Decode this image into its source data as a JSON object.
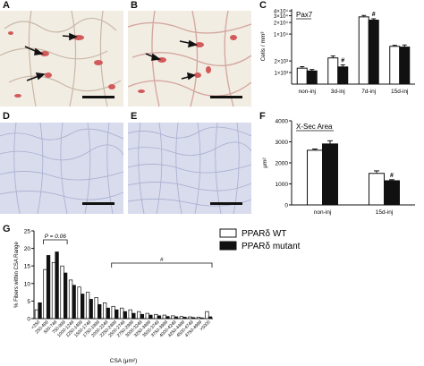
{
  "panels": {
    "A": {
      "label": "A"
    },
    "B": {
      "label": "B"
    },
    "C": {
      "label": "C"
    },
    "D": {
      "label": "D"
    },
    "E": {
      "label": "E"
    },
    "F": {
      "label": "F"
    },
    "G": {
      "label": "G"
    }
  },
  "colors": {
    "wt": "#ffffff",
    "mutant": "#111111",
    "he_background": "#f2ede3",
    "nuclei": "#d25a5a",
    "ihc_background": "#d9dced"
  },
  "chart_data": [
    {
      "panel": "C",
      "type": "bar",
      "title": "Pax7",
      "ylabel": "Cells / mm³",
      "yscale": "log",
      "yticks": [
        "1×10³",
        "2×10³",
        "1×10⁴",
        "2×10⁴",
        "3×10⁴",
        "4×10⁴"
      ],
      "ylim": [
        500,
        45000
      ],
      "categories": [
        "non-inj",
        "3d-inj",
        "7d-inj",
        "15d-inj"
      ],
      "series": [
        {
          "key": "wt",
          "values": [
            1300,
            2400,
            28000,
            4800
          ],
          "errors": [
            120,
            300,
            2500,
            300
          ]
        },
        {
          "key": "mutant",
          "values": [
            1100,
            1400,
            23000,
            4600
          ],
          "errors": [
            100,
            180,
            2000,
            600
          ]
        }
      ],
      "annotations": [
        {
          "category": "3d-inj",
          "series": "mutant",
          "text": "#"
        },
        {
          "category": "7d-inj",
          "series": "mutant",
          "text": "#"
        }
      ]
    },
    {
      "panel": "F",
      "type": "bar",
      "title": "X-Sec Area",
      "ylabel": "μm²",
      "yticks": [
        "0",
        "1000",
        "2000",
        "3000",
        "4000"
      ],
      "ylim": [
        0,
        4000
      ],
      "categories": [
        "non-inj",
        "15d-inj"
      ],
      "series": [
        {
          "key": "wt",
          "values": [
            2600,
            1500
          ],
          "errors": [
            60,
            120
          ]
        },
        {
          "key": "mutant",
          "values": [
            2900,
            1150
          ],
          "errors": [
            150,
            50
          ]
        }
      ],
      "annotations": [
        {
          "category": "15d-inj",
          "series": "mutant",
          "text": "#"
        }
      ]
    },
    {
      "panel": "G",
      "type": "bar",
      "title": "",
      "xlabel": "CSA (μm²)",
      "ylabel": "% Fibers within CSA Range",
      "yticks": [
        "0",
        "5",
        "10",
        "15",
        "20",
        "25"
      ],
      "ylim": [
        0,
        25
      ],
      "categories": [
        "<250",
        "250-499",
        "500-749",
        "750-999",
        "1000-1249",
        "1250-1499",
        "1500-1749",
        "1750-1999",
        "2000-2249",
        "2250-2499",
        "2500-2749",
        "2750-2999",
        "3000-3249",
        "3250-3499",
        "3500-3749",
        "3750-3999",
        "4000-4249",
        "4250-4499",
        "4500-4749",
        "4750-4999",
        ">5000"
      ],
      "series": [
        {
          "key": "wt",
          "name": "PPARδ WT",
          "values": [
            2.5,
            14,
            16,
            15,
            11,
            9,
            7.5,
            6,
            4.5,
            3.5,
            3,
            2.5,
            2,
            1.5,
            1.2,
            1,
            0.8,
            0.6,
            0.5,
            0.4,
            2
          ]
        },
        {
          "key": "mutant",
          "name": "PPARδ mutant",
          "values": [
            4.5,
            18,
            19,
            13,
            9.5,
            7,
            5.5,
            4,
            3,
            2.5,
            2,
            1.5,
            1.2,
            1,
            0.8,
            0.6,
            0.5,
            0.4,
            0.3,
            0.2,
            0.5
          ]
        }
      ],
      "annotations": [
        {
          "text": "P = 0.06",
          "bracket": [
            "250-499",
            "750-999"
          ]
        },
        {
          "text": "#",
          "bracket": [
            "2250-2499",
            ">5000"
          ]
        }
      ],
      "legend": {
        "position": "top-right"
      }
    }
  ]
}
